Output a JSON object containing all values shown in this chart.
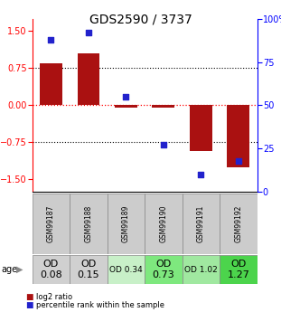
{
  "title": "GDS2590 / 3737",
  "samples": [
    "GSM99187",
    "GSM99188",
    "GSM99189",
    "GSM99190",
    "GSM99191",
    "GSM99192"
  ],
  "log2_ratio": [
    0.85,
    1.05,
    -0.04,
    -0.05,
    -0.92,
    -1.25
  ],
  "percentile_rank": [
    88,
    92,
    55,
    27,
    10,
    18
  ],
  "age_labels": [
    "OD\n0.08",
    "OD\n0.15",
    "OD 0.34",
    "OD\n0.73",
    "OD 1.02",
    "OD\n1.27"
  ],
  "age_bg_colors": [
    "#d0d0d0",
    "#d0d0d0",
    "#c8f0c8",
    "#7ee87e",
    "#a0e8a0",
    "#4cd44c"
  ],
  "age_font_sizes": [
    8,
    8,
    6.5,
    8,
    6.5,
    8
  ],
  "bar_color": "#aa1111",
  "dot_color": "#2222cc",
  "ylim_left": [
    -1.75,
    1.75
  ],
  "yticks_left": [
    -1.5,
    -0.75,
    0,
    0.75,
    1.5
  ],
  "yticks_right": [
    0,
    25,
    50,
    75,
    100
  ],
  "hline_positions": [
    0.75,
    -0.75
  ],
  "title_fontsize": 10,
  "sample_label_color": "#cccccc",
  "bar_width": 0.6
}
